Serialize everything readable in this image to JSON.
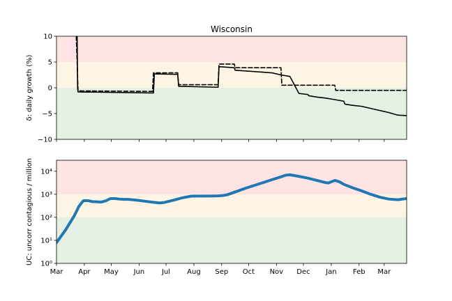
{
  "chart_data": [
    {
      "type": "line",
      "title": "Wisconsin",
      "ylabel": "δ: daily growth (%)",
      "ylim": [
        -10,
        10
      ],
      "yticks": [
        10,
        5,
        0,
        -5,
        -10
      ],
      "ytick_labels": [
        "10",
        "5",
        "0",
        "−5",
        "−10"
      ],
      "xlim": [
        0,
        390
      ],
      "bands": [
        {
          "from": 5,
          "to": 10,
          "color": "#fde3e3"
        },
        {
          "from": 0,
          "to": 5,
          "color": "#fdf4e3"
        },
        {
          "from": -10,
          "to": 0,
          "color": "#e3f0e3"
        }
      ],
      "series": [
        {
          "style": "solid",
          "color": "#000000",
          "x": [
            23,
            23.5,
            24,
            108,
            109,
            135,
            136,
            180,
            181,
            198,
            199,
            240,
            250,
            260,
            270,
            280,
            281,
            290,
            300,
            310,
            320,
            321,
            322,
            330,
            340,
            350,
            360,
            370,
            380,
            390
          ],
          "y": [
            10,
            0,
            -0.8,
            -1,
            2.7,
            2.6,
            0.3,
            0.1,
            4.1,
            3.9,
            3.4,
            2.9,
            2.5,
            2.2,
            -1.1,
            -1.3,
            -1.55,
            -1.8,
            -2.0,
            -2.3,
            -2.6,
            -3.1,
            -3.2,
            -3.4,
            -3.6,
            -4.0,
            -4.4,
            -4.8,
            -5.3,
            -5.4
          ]
        },
        {
          "style": "dashed",
          "color": "#000000",
          "x": [
            22,
            23,
            24,
            107,
            108,
            135,
            136,
            180,
            181,
            198,
            199,
            250,
            251,
            310,
            311,
            390
          ],
          "y": [
            10,
            5,
            -0.6,
            -0.7,
            2.9,
            2.9,
            0.6,
            0.6,
            4.6,
            4.6,
            3.9,
            3.9,
            0.5,
            0.5,
            -0.5,
            -0.5
          ]
        }
      ]
    },
    {
      "type": "line",
      "ylabel": "UC: uncorr contagious / million",
      "yscale": "log",
      "ylim": [
        1,
        30000
      ],
      "yticks": [
        1,
        10,
        100,
        1000,
        10000
      ],
      "ytick_labels": [
        "10⁰",
        "10¹",
        "10²",
        "10³",
        "10⁴"
      ],
      "xlim": [
        0,
        390
      ],
      "xticks": [
        0,
        31,
        61,
        92,
        122,
        153,
        184,
        214,
        245,
        275,
        306,
        337,
        365
      ],
      "xtick_labels": [
        "Mar",
        "Apr",
        "May",
        "Jun",
        "Jul",
        "Aug",
        "Sep",
        "Oct",
        "Nov",
        "Dec",
        "Jan",
        "Feb",
        "Mar"
      ],
      "bands": [
        {
          "from": 1000,
          "to": 30000,
          "color": "#fde3e3"
        },
        {
          "from": 100,
          "to": 1000,
          "color": "#fdf4e3"
        },
        {
          "from": 1,
          "to": 100,
          "color": "#e3f0e3"
        }
      ],
      "series": [
        {
          "style": "solid",
          "color": "#1f77b4",
          "x": [
            0,
            10,
            20,
            25,
            30,
            35,
            40,
            45,
            50,
            55,
            60,
            65,
            70,
            75,
            80,
            90,
            100,
            110,
            115,
            120,
            130,
            140,
            150,
            160,
            170,
            180,
            185,
            190,
            200,
            210,
            220,
            230,
            240,
            250,
            255,
            260,
            270,
            280,
            290,
            300,
            303,
            307,
            310,
            315,
            320,
            330,
            340,
            350,
            360,
            370,
            380,
            390
          ],
          "y": [
            8,
            28,
            120,
            300,
            530,
            530,
            480,
            470,
            460,
            520,
            650,
            650,
            620,
            600,
            600,
            550,
            490,
            440,
            420,
            440,
            550,
            700,
            830,
            840,
            840,
            850,
            880,
            950,
            1300,
            1800,
            2400,
            3200,
            4300,
            5700,
            6700,
            7000,
            6000,
            5000,
            4000,
            3200,
            3100,
            3600,
            4000,
            3500,
            2700,
            1900,
            1400,
            1000,
            750,
            620,
            580,
            650
          ]
        }
      ]
    }
  ]
}
